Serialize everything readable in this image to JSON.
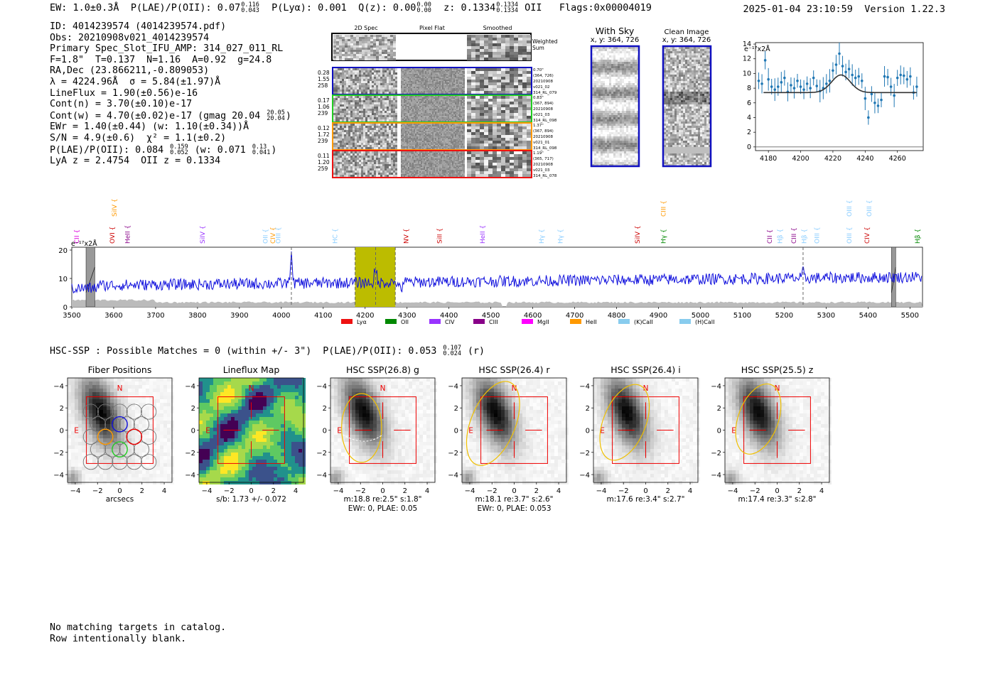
{
  "header": {
    "ew": "EW: 1.0±0.3Å",
    "plae_label": "P(LAE)/P(OII):",
    "plae_value": "0.07",
    "plae_hi": "0.116",
    "plae_lo": "0.043",
    "plya": "P(Lyα): 0.001",
    "qz_label": "Q(z): 0.00",
    "qz_hi": "0.00",
    "qz_lo": "0.00",
    "z_label": "z: 0.1334",
    "z_hi": "0.1334",
    "z_lo": "0.1334",
    "z_line": "OII",
    "flags": "Flags:0x00004019",
    "datetime": "2025-01-04 23:10:59",
    "version": "Version 1.22.3"
  },
  "info": {
    "id": "ID: 4014239574 (4014239574.pdf)",
    "obs": "Obs: 20210908v021_4014239574",
    "primary": "Primary Spec_Slot_IFU_AMP: 314_027_011_RL",
    "fit": "F=1.8\"  T=0.137  N=1.16  A=0.92  g=24.8",
    "radec": "RA,Dec (23.866211,-0.809053)",
    "lambda": "λ = 4224.96Å  σ = 5.84(±1.97)Å",
    "lineflux": "LineFlux = 1.90(±0.56)e-16",
    "contn": "Cont(n) = 3.70(±0.10)e-17",
    "contw_a": "Cont(w) = 4.70(±0.02)e-17 (gmag 20.04",
    "contw_hi": "20.05",
    "contw_lo": "20.04",
    "contw_b": ")",
    "ewr": "EWr = 1.40(±0.44) (w: 1.10(±0.34))Å",
    "sn": "S/N = 4.9(±0.6)  χ² = 1.1(±0.2)",
    "plae_a": "P(LAE)/P(OII): 0.084",
    "plae_hi": "0.159",
    "plae_lo": "0.052",
    "plae_b": "(w: 0.071",
    "plae_w_hi": "0.13",
    "plae_w_lo": "0.041",
    "plae_c": ")",
    "lyaz": "LyA z = 2.4754  OII z = 0.1334"
  },
  "cutouts": {
    "col_titles": [
      "2D Spec",
      "Pixel Flat",
      "Smoothed"
    ],
    "weighted_label": "Weighted\nSum",
    "rows": [
      {
        "color": "#1010c0",
        "left": [
          "0.28",
          "1.55",
          "258"
        ],
        "right": [
          "0.70\"",
          "(364, 726)",
          "20210908",
          "v021_02",
          "314_RL_079"
        ]
      },
      {
        "color": "#22cc22",
        "left": [
          "0.17",
          "1.06",
          "239"
        ],
        "right": [
          "0.83\"",
          "(367, 894)",
          "20210908",
          "v021_03",
          "314_RL_098"
        ]
      },
      {
        "color": "#ff9900",
        "left": [
          "0.12",
          "1.72",
          "239"
        ],
        "right": [
          "1.37\"",
          "(367, 894)",
          "20210908",
          "v021_01",
          "314_RL_098"
        ]
      },
      {
        "color": "#ee1111",
        "left": [
          "0.11",
          "1.20",
          "259"
        ],
        "right": [
          "1.19\"",
          "(365, 717)",
          "20210908",
          "v021_03",
          "314_RL_078"
        ]
      }
    ]
  },
  "sky_panels": {
    "with_sky_title": "With Sky",
    "with_sky_coords": "x, y: 364, 726",
    "clean_title": "Clean Image",
    "clean_coords": "x, y: 364, 726"
  },
  "zoom_plot": {
    "unit_label": "e⁻¹⁷x2Å",
    "xticks": [
      "4180",
      "4200",
      "4220",
      "4240",
      "4260"
    ],
    "yticks": [
      "0",
      "2",
      "4",
      "6",
      "8",
      "10",
      "12",
      "14"
    ],
    "xlim": [
      4172,
      4276
    ],
    "ylim": [
      -0.5,
      14.2
    ],
    "continuum": 7.4,
    "gauss_amp": 2.4,
    "gauss_center": 4225,
    "gauss_sigma": 5.8,
    "x": [
      4174,
      4176,
      4178,
      4180,
      4182,
      4184,
      4186,
      4188,
      4190,
      4192,
      4194,
      4196,
      4198,
      4200,
      4202,
      4204,
      4206,
      4208,
      4210,
      4212,
      4214,
      4216,
      4218,
      4220,
      4222,
      4224,
      4226,
      4228,
      4230,
      4232,
      4234,
      4236,
      4238,
      4240,
      4242,
      4244,
      4246,
      4248,
      4250,
      4252,
      4254,
      4256,
      4258,
      4260,
      4262,
      4264,
      4266,
      4268,
      4270,
      4272
    ],
    "y": [
      9.0,
      8.6,
      11.8,
      9.2,
      8.2,
      7.8,
      8.2,
      8.8,
      9.4,
      7.5,
      8.4,
      8.0,
      9.0,
      8.2,
      7.8,
      8.6,
      8.0,
      9.4,
      8.3,
      7.6,
      8.0,
      8.6,
      9.0,
      10.4,
      11.2,
      12.7,
      11.0,
      10.2,
      10.6,
      9.8,
      9.4,
      9.6,
      9.0,
      6.6,
      4.0,
      7.2,
      6.0,
      5.6,
      6.4,
      9.6,
      9.5,
      8.2,
      7.0,
      9.4,
      9.8,
      9.7,
      9.2,
      9.6,
      7.4,
      8.2
    ]
  },
  "spectrum": {
    "unit_label": "e⁻¹⁷x2Å",
    "xticks": [
      "3500",
      "3600",
      "3700",
      "3800",
      "3900",
      "4000",
      "4100",
      "4200",
      "4300",
      "4400",
      "4500",
      "4600",
      "4700",
      "4800",
      "4900",
      "5000",
      "5100",
      "5200",
      "5300",
      "5400",
      "5500"
    ],
    "yticks": [
      "0",
      "10",
      "20"
    ],
    "xlim": [
      3500,
      5530
    ],
    "ylim": [
      0,
      21
    ],
    "highlight_band": [
      4176,
      4272
    ],
    "dashed_lines": [
      4024,
      4176,
      4225,
      4272,
      5245
    ],
    "masked_bands": [
      [
        3534,
        3555
      ],
      [
        5456,
        5466
      ]
    ],
    "line_labels": [
      {
        "text": "CII",
        "x": 3512,
        "color": "#dd00dd",
        "row": 1
      },
      {
        "text": "OVI",
        "x": 3597,
        "color": "#cc0000",
        "row": 1
      },
      {
        "text": "SiIV",
        "x": 3602,
        "color": "#ff9900",
        "row": 0
      },
      {
        "text": "HeII",
        "x": 3633,
        "color": "#880088",
        "row": 1
      },
      {
        "text": "SiIV",
        "x": 3812,
        "color": "#9933ff",
        "row": 1
      },
      {
        "text": "OII",
        "x": 3962,
        "color": "#88ccff",
        "row": 1
      },
      {
        "text": "CIV",
        "x": 3980,
        "color": "#ff9900",
        "row": 1
      },
      {
        "text": "OIII",
        "x": 3993,
        "color": "#88ccff",
        "row": 1
      },
      {
        "text": "HC",
        "x": 4128,
        "color": "#88ccff",
        "row": 1
      },
      {
        "text": "NV",
        "x": 4298,
        "color": "#cc0000",
        "row": 1
      },
      {
        "text": "SiII",
        "x": 4378,
        "color": "#cc0000",
        "row": 1
      },
      {
        "text": "HeII",
        "x": 4480,
        "color": "#9933ff",
        "row": 1
      },
      {
        "text": "Hγ",
        "x": 4621,
        "color": "#88ccff",
        "row": 1
      },
      {
        "text": "Hγ",
        "x": 4666,
        "color": "#88ccff",
        "row": 1
      },
      {
        "text": "SiIV",
        "x": 4850,
        "color": "#cc0000",
        "row": 1
      },
      {
        "text": "CIII",
        "x": 4912,
        "color": "#ff9900",
        "row": 0
      },
      {
        "text": "Hγ",
        "x": 4912,
        "color": "#008800",
        "row": 1
      },
      {
        "text": "CII",
        "x": 5165,
        "color": "#880088",
        "row": 1
      },
      {
        "text": "Hβ",
        "x": 5190,
        "color": "#88ccff",
        "row": 1
      },
      {
        "text": "CIII",
        "x": 5223,
        "color": "#880088",
        "row": 1
      },
      {
        "text": "Hβ",
        "x": 5248,
        "color": "#88ccff",
        "row": 1
      },
      {
        "text": "OIII",
        "x": 5278,
        "color": "#88ccff",
        "row": 1
      },
      {
        "text": "OIII",
        "x": 5355,
        "color": "#88ccff",
        "row": 0
      },
      {
        "text": "OIII",
        "x": 5355,
        "color": "#88ccff",
        "row": 1
      },
      {
        "text": "OIII",
        "x": 5403,
        "color": "#88ccff",
        "row": 0
      },
      {
        "text": "CIV",
        "x": 5398,
        "color": "#cc0000",
        "row": 1
      },
      {
        "text": "Hβ",
        "x": 5518,
        "color": "#008800",
        "row": 1
      }
    ],
    "legend": [
      {
        "label": "Lyα",
        "color": "#ee1111"
      },
      {
        "label": "OII",
        "color": "#008800"
      },
      {
        "label": "CIV",
        "color": "#9933ff"
      },
      {
        "label": "CIII",
        "color": "#880088"
      },
      {
        "label": "MgII",
        "color": "#ff00ff"
      },
      {
        "label": "HeII",
        "color": "#ff9900"
      },
      {
        "label": "(K)CaII",
        "color": "#88ccee"
      },
      {
        "label": "(H)CaII",
        "color": "#88ccee"
      }
    ]
  },
  "hsc": {
    "summary_a": "HSC-SSP : Possible Matches = 0 (within +/- 3\")  P(LAE)/P(OII): 0.053",
    "summary_hi": "0.107",
    "summary_lo": "0.024",
    "summary_b": "(r)",
    "north": "N",
    "east": "E",
    "ticks": [
      "−4",
      "−2",
      "0",
      "2",
      "4"
    ],
    "panels": [
      {
        "title": "Fiber Positions",
        "caption1": "arcsecs",
        "caption2": ""
      },
      {
        "title": "Lineflux Map",
        "caption1": "s/b: 1.73 +/- 0.072",
        "caption2": ""
      },
      {
        "title": "HSC SSP(26.8) g",
        "caption1": "m:18.8  re:2.5\"  s:1.8\"",
        "caption2": "EWr: 0, PLAE: 0.05"
      },
      {
        "title": "HSC SSP(26.4) r",
        "caption1": "m:18.1  re:3.7\"  s:2.6\"",
        "caption2": "EWr: 0, PLAE: 0.053"
      },
      {
        "title": "HSC SSP(26.4) i",
        "caption1": "m:17.6  re:3.4\"  s:2.7\"",
        "caption2": ""
      },
      {
        "title": "HSC SSP(25.5) z",
        "caption1": "m:17.4  re:3.3\"  s:2.8\"",
        "caption2": ""
      }
    ]
  },
  "footer": {
    "line1": "No matching targets in catalog.",
    "line2": "Row intentionally blank."
  }
}
